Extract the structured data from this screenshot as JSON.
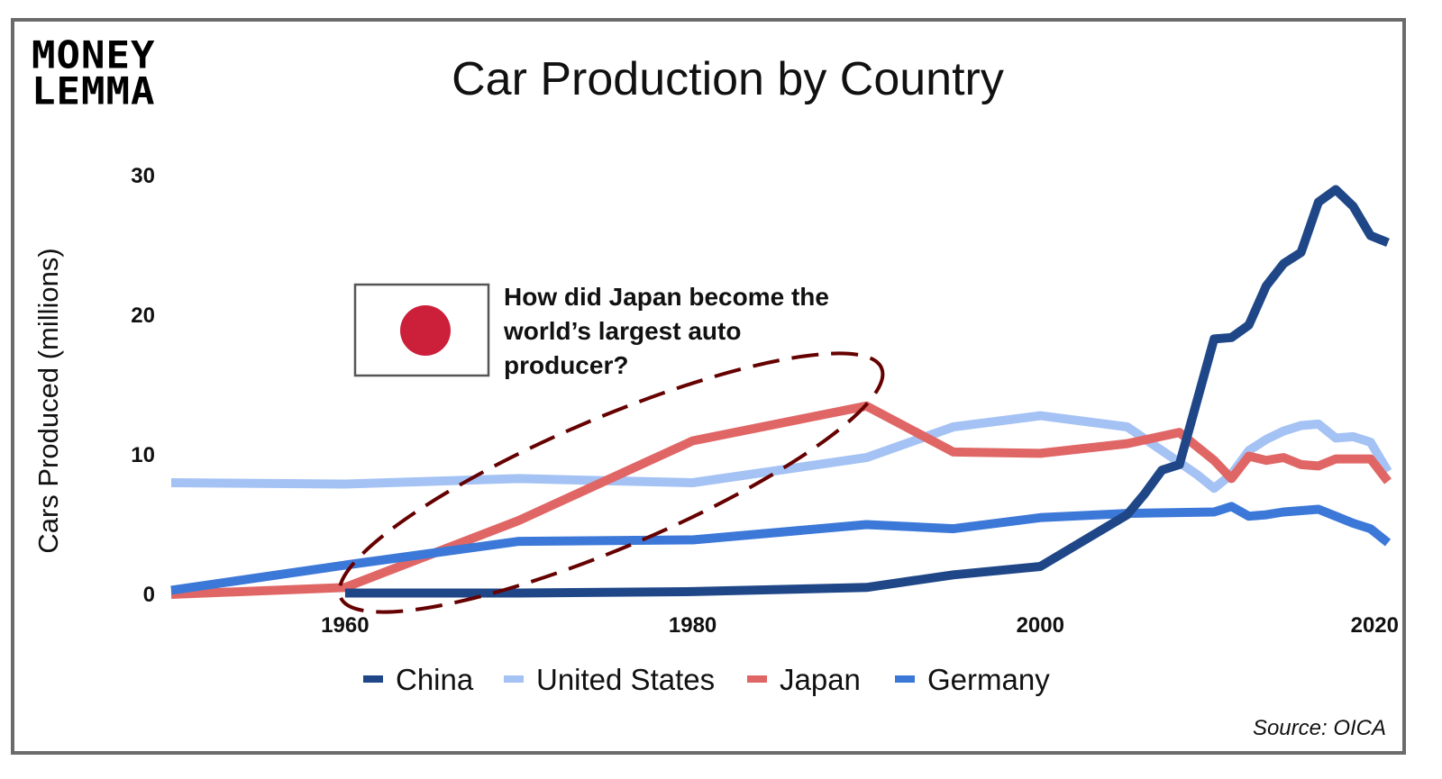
{
  "logo": {
    "line1": "MONEY",
    "line2": "LEMMA"
  },
  "title": "Car Production by Country",
  "source": "Source: OICA",
  "callout": {
    "lines": [
      "How did Japan become the",
      "world’s largest auto",
      "producer?"
    ]
  },
  "colors": {
    "china": "#1f4788",
    "united_states": "#a4c2f4",
    "japan": "#e06666",
    "germany": "#3c78d8",
    "ellipse": "#660000",
    "flag_red": "#cc1f3a",
    "flag_border": "#555555"
  },
  "chart_data": {
    "type": "line",
    "title": "Car Production by Country",
    "xlabel": "",
    "ylabel": "Cars Produced (millions)",
    "xlim": [
      1950,
      2020
    ],
    "ylim": [
      0,
      30
    ],
    "xticks": [
      1960,
      1980,
      2000,
      2020
    ],
    "yticks": [
      0,
      10,
      20,
      30
    ],
    "grid": false,
    "legend_position": "bottom",
    "series": [
      {
        "name": "China",
        "color_key": "china",
        "x": [
          1960,
          1970,
          1980,
          1990,
          1995,
          2000,
          2005,
          2006,
          2007,
          2008,
          2009,
          2010,
          2011,
          2012,
          2013,
          2014,
          2015,
          2016,
          2017,
          2018,
          2019,
          2020
        ],
        "y": [
          0.1,
          0.1,
          0.2,
          0.5,
          1.4,
          2.0,
          5.7,
          7.2,
          8.9,
          9.3,
          13.8,
          18.3,
          18.4,
          19.3,
          22.1,
          23.7,
          24.5,
          28.1,
          29.0,
          27.8,
          25.7,
          25.2
        ]
      },
      {
        "name": "United States",
        "color_key": "united_states",
        "x": [
          1950,
          1960,
          1970,
          1980,
          1990,
          1995,
          2000,
          2005,
          2009,
          2010,
          2011,
          2012,
          2013,
          2014,
          2015,
          2016,
          2017,
          2018,
          2019,
          2020
        ],
        "y": [
          8.0,
          7.9,
          8.3,
          8.0,
          9.8,
          12.0,
          12.8,
          12.0,
          8.6,
          7.6,
          8.6,
          10.3,
          11.1,
          11.7,
          12.1,
          12.2,
          11.2,
          11.3,
          10.9,
          8.8
        ]
      },
      {
        "name": "Japan",
        "color_key": "japan",
        "x": [
          1950,
          1960,
          1970,
          1980,
          1990,
          1995,
          2000,
          2005,
          2008,
          2010,
          2011,
          2012,
          2013,
          2014,
          2015,
          2016,
          2017,
          2018,
          2019,
          2020
        ],
        "y": [
          0.0,
          0.5,
          5.3,
          11.0,
          13.5,
          10.2,
          10.1,
          10.8,
          11.6,
          9.6,
          8.3,
          9.9,
          9.6,
          9.8,
          9.3,
          9.2,
          9.7,
          9.7,
          9.7,
          8.1
        ]
      },
      {
        "name": "Germany",
        "color_key": "germany",
        "x": [
          1950,
          1960,
          1970,
          1980,
          1990,
          1995,
          2000,
          2005,
          2010,
          2011,
          2012,
          2013,
          2014,
          2015,
          2016,
          2017,
          2018,
          2019,
          2020
        ],
        "y": [
          0.3,
          2.1,
          3.8,
          3.9,
          5.0,
          4.7,
          5.5,
          5.8,
          5.9,
          6.3,
          5.6,
          5.7,
          5.9,
          6.0,
          6.1,
          5.6,
          5.1,
          4.7,
          3.7
        ]
      }
    ],
    "annotations": [
      {
        "type": "ellipse",
        "style": "dashed",
        "x_range": [
          1960,
          1992
        ],
        "y_range": [
          0,
          14
        ]
      },
      {
        "type": "flag",
        "label": "Japan flag"
      }
    ]
  }
}
